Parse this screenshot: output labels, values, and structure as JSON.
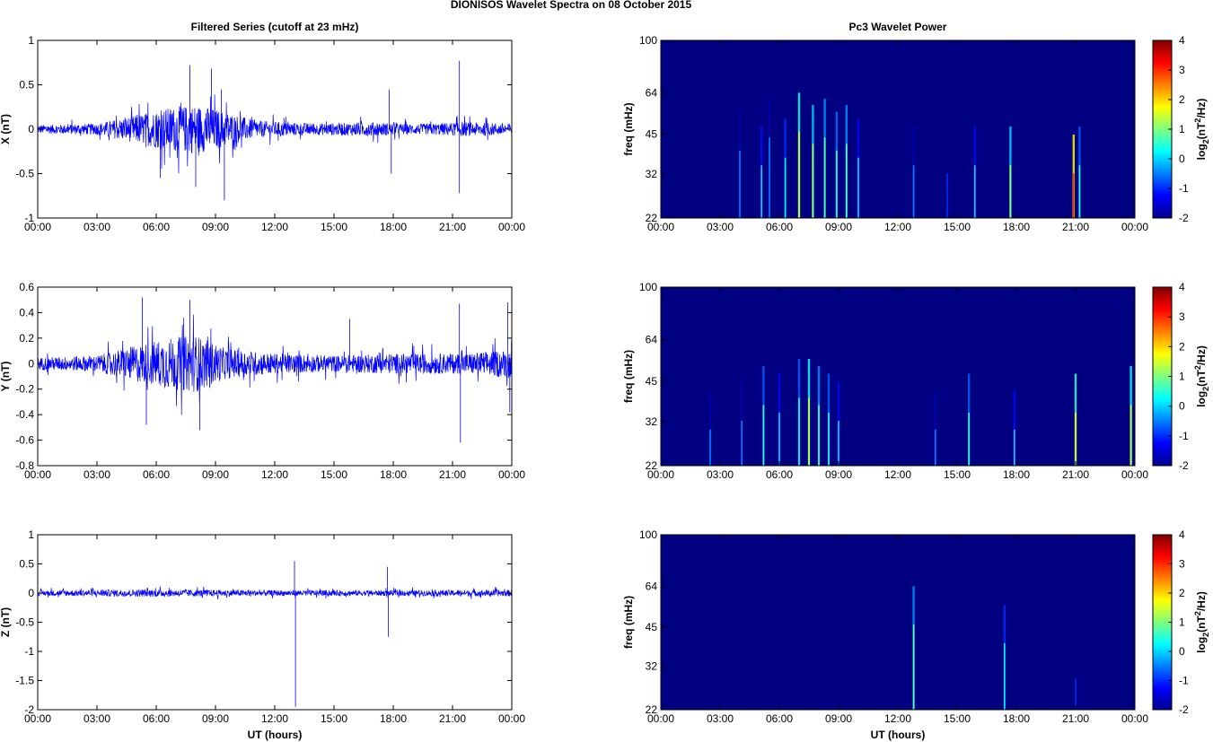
{
  "figure": {
    "title": "DIONISOS Wavelet Spectra on 08 October   2015",
    "left_title": "Filtered Series (cutoff at 23 mHz)",
    "right_title": "Pc3 Wavelet Power"
  },
  "time_ticks": [
    "00:00",
    "03:00",
    "06:00",
    "09:00",
    "12:00",
    "15:00",
    "18:00",
    "21:00",
    "00:00"
  ],
  "freq_ticks": [
    "100",
    "64",
    "45",
    "32",
    "22"
  ],
  "colorbar_ticks": [
    "4",
    "3",
    "2",
    "1",
    "0",
    "-1",
    "-2"
  ],
  "colors": {
    "series": "#0000ff",
    "background_min": "#00008f"
  },
  "chart_data": [
    {
      "type": "line",
      "panel": "X",
      "xlabel": "",
      "ylabel": "X (nT)",
      "xlim_hours": [
        0,
        24
      ],
      "ylim": [
        -1,
        1
      ],
      "yticks": [
        "1",
        "0.5",
        "0",
        "-0.5",
        "-1"
      ],
      "noise_envelope": [
        {
          "t": 0,
          "amp": 0.06
        },
        {
          "t": 3,
          "amp": 0.08
        },
        {
          "t": 5,
          "amp": 0.2
        },
        {
          "t": 6.5,
          "amp": 0.3
        },
        {
          "t": 8,
          "amp": 0.35
        },
        {
          "t": 9.5,
          "amp": 0.25
        },
        {
          "t": 11,
          "amp": 0.12
        },
        {
          "t": 14,
          "amp": 0.08
        },
        {
          "t": 17,
          "amp": 0.1
        },
        {
          "t": 19,
          "amp": 0.07
        },
        {
          "t": 21.5,
          "amp": 0.1
        },
        {
          "t": 24,
          "amp": 0.08
        }
      ],
      "spikes": [
        {
          "t": 7.7,
          "y": 0.72
        },
        {
          "t": 8.0,
          "y": -0.65
        },
        {
          "t": 8.8,
          "y": 0.68
        },
        {
          "t": 9.45,
          "y": -0.8
        },
        {
          "t": 9.3,
          "y": 0.45
        },
        {
          "t": 17.8,
          "y": 0.45
        },
        {
          "t": 17.9,
          "y": -0.5
        },
        {
          "t": 21.35,
          "y": 0.77
        },
        {
          "t": 21.35,
          "y": -0.72
        },
        {
          "t": 6.2,
          "y": -0.55
        }
      ]
    },
    {
      "type": "line",
      "panel": "Y",
      "xlabel": "",
      "ylabel": "Y (nT)",
      "xlim_hours": [
        0,
        24
      ],
      "ylim": [
        -0.8,
        0.6
      ],
      "yticks": [
        "0.6",
        "0.4",
        "0.2",
        "0",
        "-0.2",
        "-0.4",
        "-0.6",
        "-0.8"
      ],
      "noise_envelope": [
        {
          "t": 0,
          "amp": 0.06
        },
        {
          "t": 3,
          "amp": 0.08
        },
        {
          "t": 5,
          "amp": 0.18
        },
        {
          "t": 6.5,
          "amp": 0.25
        },
        {
          "t": 8,
          "amp": 0.28
        },
        {
          "t": 9.5,
          "amp": 0.15
        },
        {
          "t": 12,
          "amp": 0.1
        },
        {
          "t": 15,
          "amp": 0.08
        },
        {
          "t": 18,
          "amp": 0.1
        },
        {
          "t": 21.5,
          "amp": 0.1
        },
        {
          "t": 24,
          "amp": 0.14
        }
      ],
      "spikes": [
        {
          "t": 5.3,
          "y": 0.52
        },
        {
          "t": 5.5,
          "y": -0.48
        },
        {
          "t": 7.7,
          "y": 0.5
        },
        {
          "t": 8.2,
          "y": -0.52
        },
        {
          "t": 21.35,
          "y": 0.47
        },
        {
          "t": 21.4,
          "y": -0.62
        },
        {
          "t": 23.8,
          "y": 0.48
        },
        {
          "t": 23.9,
          "y": -0.38
        },
        {
          "t": 15.8,
          "y": 0.35
        }
      ]
    },
    {
      "type": "line",
      "panel": "Z",
      "xlabel": "UT (hours)",
      "ylabel": "Z (nT)",
      "xlim_hours": [
        0,
        24
      ],
      "ylim": [
        -2,
        1
      ],
      "yticks": [
        "1",
        "0.5",
        "0",
        "-0.5",
        "-1",
        "-1.5",
        "-2"
      ],
      "noise_envelope": [
        {
          "t": 0,
          "amp": 0.06
        },
        {
          "t": 6,
          "amp": 0.08
        },
        {
          "t": 12,
          "amp": 0.06
        },
        {
          "t": 18,
          "amp": 0.06
        },
        {
          "t": 24,
          "amp": 0.07
        }
      ],
      "spikes": [
        {
          "t": 13.0,
          "y": 0.55
        },
        {
          "t": 13.05,
          "y": -1.95
        },
        {
          "t": 17.7,
          "y": 0.45
        },
        {
          "t": 17.75,
          "y": -0.75
        }
      ]
    },
    {
      "type": "heatmap",
      "panel": "X",
      "ylabel": "freq (mHz)",
      "xlabel": "",
      "xlim_hours": [
        0,
        24
      ],
      "ylim_mHz": [
        22,
        100
      ],
      "ylog": true,
      "colorbar_label": "log2(nT^2/Hz)",
      "clim": [
        -2,
        4
      ],
      "background": -2,
      "bursts": [
        {
          "t": 4.0,
          "f": 34,
          "v": -0.5
        },
        {
          "t": 5.1,
          "f": 30,
          "v": 0.0
        },
        {
          "t": 5.5,
          "f": 38,
          "v": -0.5
        },
        {
          "t": 6.3,
          "f": 32,
          "v": 0.2
        },
        {
          "t": 7.0,
          "f": 40,
          "v": 1.6
        },
        {
          "t": 7.7,
          "f": 36,
          "v": 1.2
        },
        {
          "t": 8.3,
          "f": 38,
          "v": 0.8
        },
        {
          "t": 8.9,
          "f": 34,
          "v": 0.6
        },
        {
          "t": 9.4,
          "f": 36,
          "v": 0.8
        },
        {
          "t": 10.0,
          "f": 32,
          "v": 0.0
        },
        {
          "t": 12.8,
          "f": 30,
          "v": -0.5
        },
        {
          "t": 14.5,
          "f": 28,
          "v": -1.0
        },
        {
          "t": 15.9,
          "f": 30,
          "v": 0.0
        },
        {
          "t": 17.7,
          "f": 30,
          "v": 1.2
        },
        {
          "t": 20.9,
          "f": 28,
          "v": 3.0
        },
        {
          "t": 21.2,
          "f": 30,
          "v": 0.5
        }
      ]
    },
    {
      "type": "heatmap",
      "panel": "Y",
      "ylabel": "freq (mHz)",
      "xlabel": "",
      "xlim_hours": [
        0,
        24
      ],
      "ylim_mHz": [
        22,
        100
      ],
      "ylog": true,
      "colorbar_label": "log2(nT^2/Hz)",
      "clim": [
        -2,
        4
      ],
      "background": -2,
      "bursts": [
        {
          "t": 2.5,
          "f": 26,
          "v": -0.5
        },
        {
          "t": 4.1,
          "f": 28,
          "v": -0.5
        },
        {
          "t": 5.2,
          "f": 32,
          "v": 0.5
        },
        {
          "t": 6.0,
          "f": 30,
          "v": 0.0
        },
        {
          "t": 7.0,
          "f": 34,
          "v": 0.5
        },
        {
          "t": 7.5,
          "f": 34,
          "v": 1.5
        },
        {
          "t": 8.0,
          "f": 32,
          "v": 0.8
        },
        {
          "t": 8.5,
          "f": 30,
          "v": 0.5
        },
        {
          "t": 9.0,
          "f": 28,
          "v": 0.0
        },
        {
          "t": 13.9,
          "f": 26,
          "v": -0.5
        },
        {
          "t": 15.6,
          "f": 30,
          "v": 0.5
        },
        {
          "t": 17.9,
          "f": 26,
          "v": 0.0
        },
        {
          "t": 21.0,
          "f": 30,
          "v": 1.8
        },
        {
          "t": 23.8,
          "f": 32,
          "v": 1.5
        }
      ]
    },
    {
      "type": "heatmap",
      "panel": "Z",
      "ylabel": "freq (mHz)",
      "xlabel": "UT (hours)",
      "xlim_hours": [
        0,
        24
      ],
      "ylim_mHz": [
        22,
        100
      ],
      "ylog": true,
      "colorbar_label": "log2(nT^2/Hz)",
      "clim": [
        -2,
        4
      ],
      "background": -2,
      "bursts": [
        {
          "t": 12.8,
          "f": 40,
          "v": 0.8
        },
        {
          "t": 17.4,
          "f": 34,
          "v": 0.2
        },
        {
          "t": 21.0,
          "f": 25,
          "v": -1.0
        }
      ]
    }
  ]
}
